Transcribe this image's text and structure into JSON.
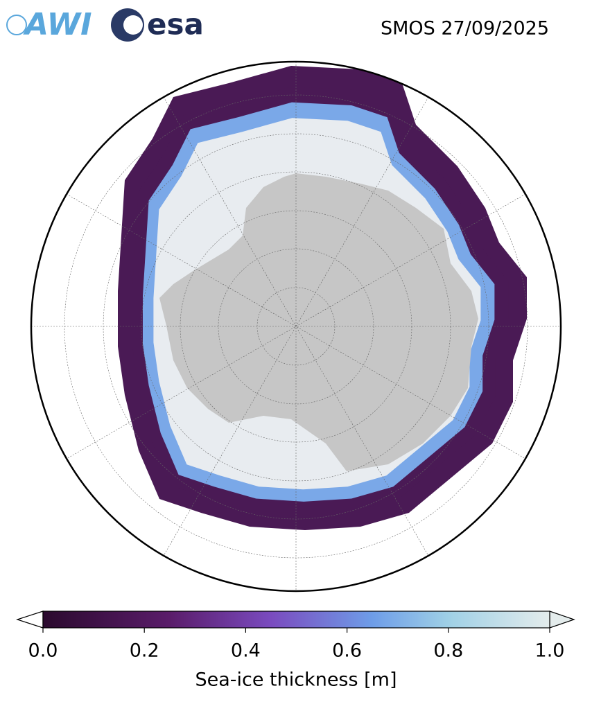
{
  "header": {
    "title": "SMOS 27/09/2025",
    "logos": [
      "AWI",
      "esa"
    ]
  },
  "colorbar": {
    "label": "Sea-ice thickness [m]",
    "lim": [
      0,
      1
    ],
    "ticks": [
      {
        "value": 0,
        "label": "0.0"
      },
      {
        "value": 0.2,
        "label": "0.2"
      },
      {
        "value": 0.4,
        "label": "0.4"
      },
      {
        "value": 0.6,
        "label": "0.6"
      },
      {
        "value": 0.8,
        "label": "0.8"
      },
      {
        "value": 1,
        "label": "1.0"
      }
    ]
  }
}
